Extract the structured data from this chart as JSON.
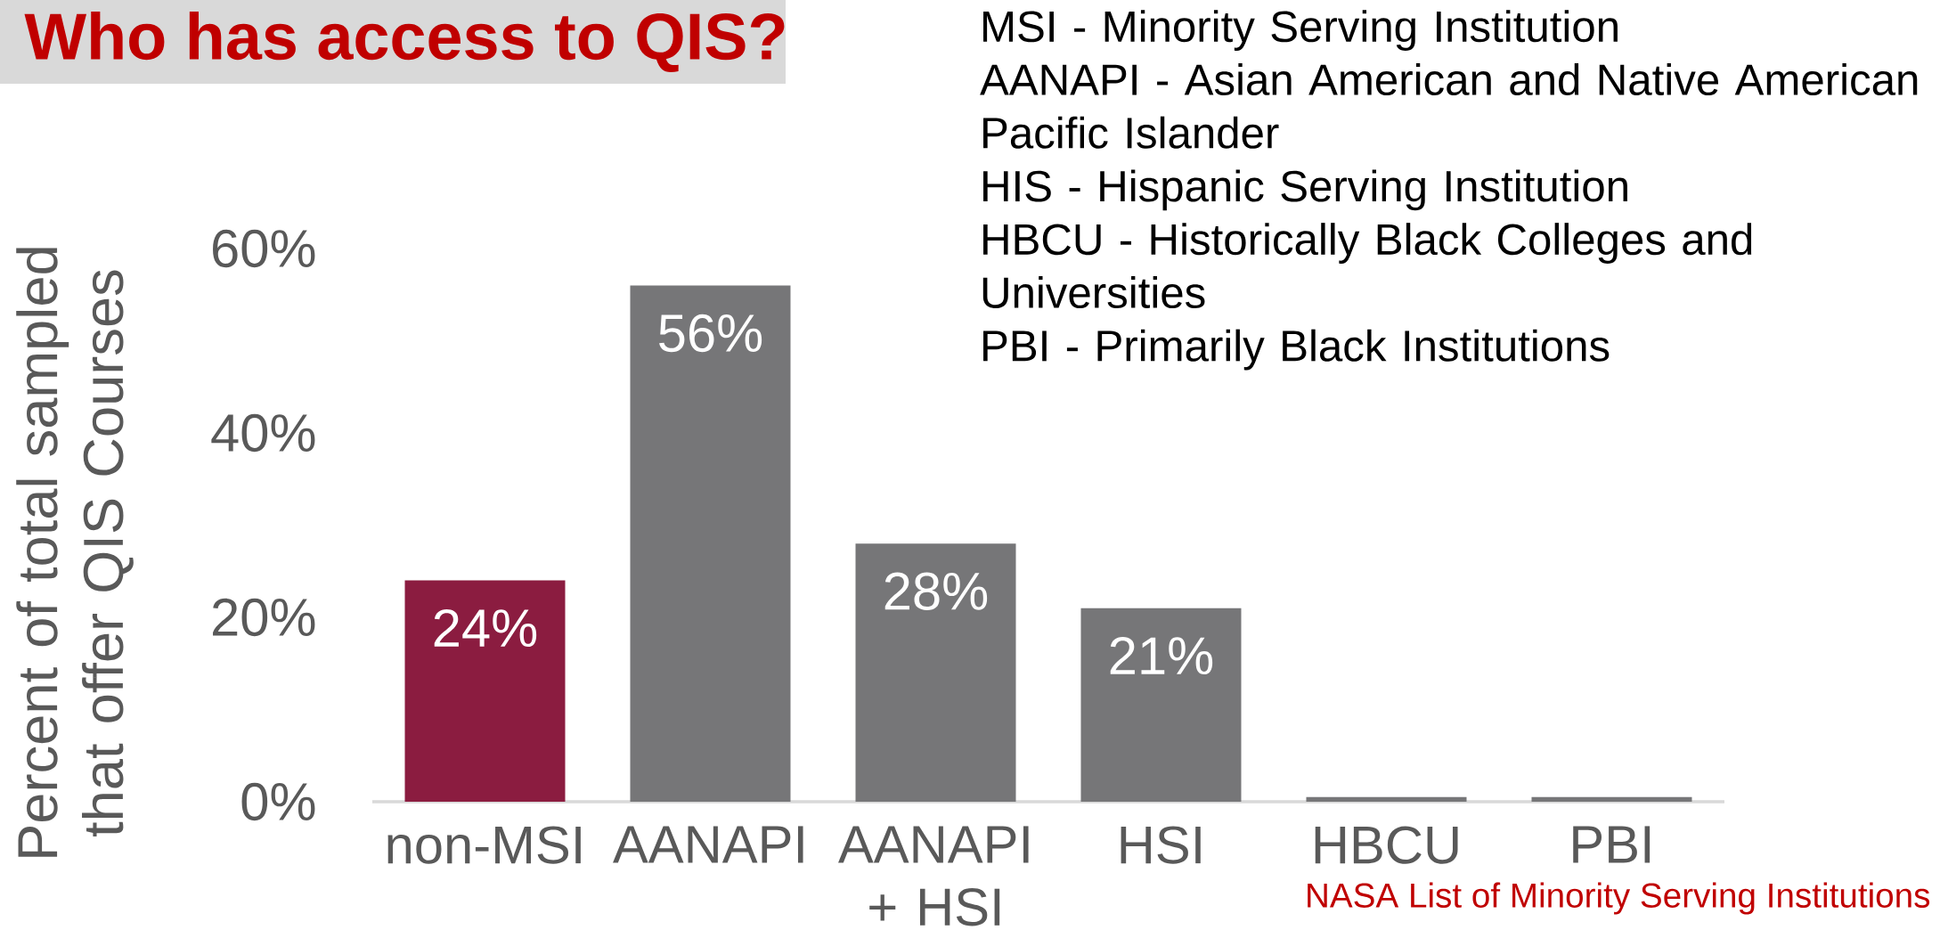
{
  "chart_data": {
    "type": "bar",
    "title": "Who has access to QIS?",
    "ylabel": "Percent of total sampled that offer QIS Courses",
    "categories": [
      "non-MSI",
      "AANAPI",
      "AANAPI + HSI",
      "HSI",
      "HBCU",
      "PBI"
    ],
    "values": [
      24,
      56,
      28,
      21,
      0.5,
      0.5
    ],
    "colors": [
      "#8b1c40",
      "#767678",
      "#767678",
      "#767678",
      "#767678",
      "#767678"
    ],
    "value_labels": [
      "24%",
      "56%",
      "28%",
      "21%",
      null,
      null
    ],
    "ylim": [
      0,
      60
    ],
    "yticks": [
      {
        "value": 0,
        "label": "0%"
      },
      {
        "value": 20,
        "label": "20%"
      },
      {
        "value": 40,
        "label": "40%"
      },
      {
        "value": 60,
        "label": "60%"
      }
    ],
    "annotations": [
      "MSI - Minority Serving Institution",
      "AANAPI - Asian American and Native American Pacific Islander",
      "HIS - Hispanic Serving Institution",
      "HBCU - Historically Black Colleges and Universities",
      "PBI - Primarily Black Institutions",
      "NASA List of Minority Serving Institutions"
    ]
  }
}
